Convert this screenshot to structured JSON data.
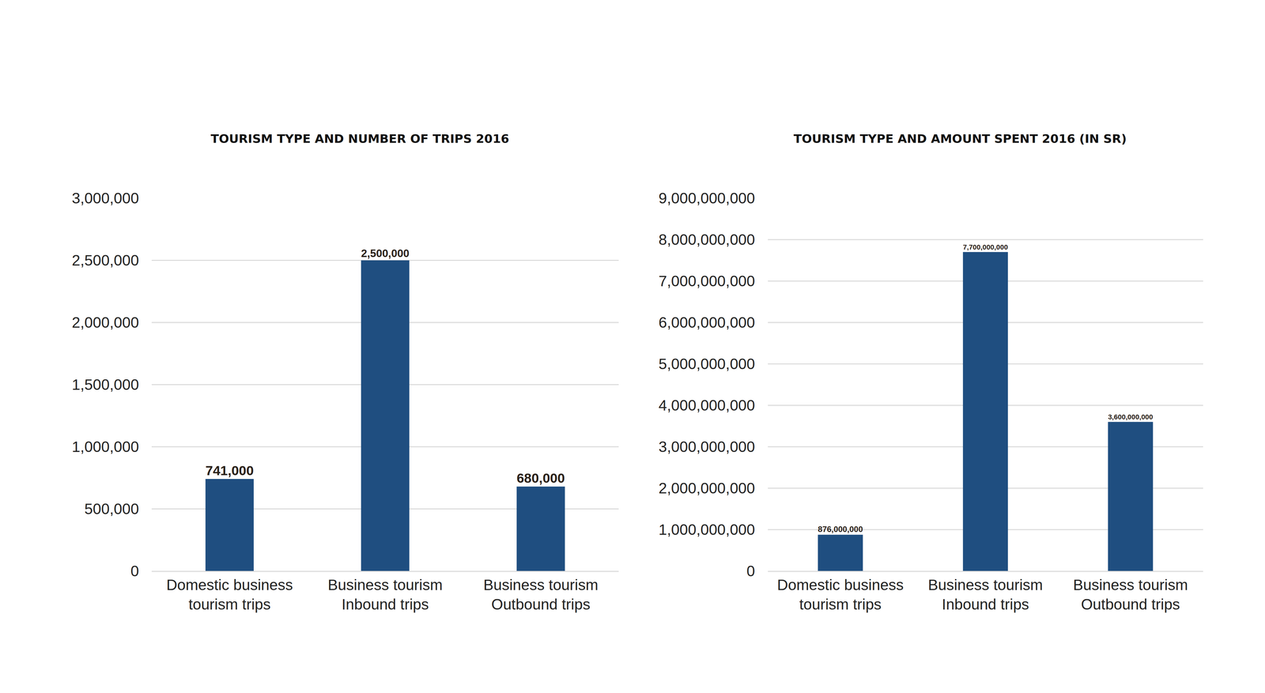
{
  "chart_data": [
    {
      "type": "bar",
      "title": "TOURISM TYPE AND NUMBER OF TRIPS 2016",
      "categories": [
        "Domestic business tourism trips",
        "Business tourism Inbound trips",
        "Business tourism Outbound trips"
      ],
      "values": [
        741000,
        2500000,
        680000
      ],
      "value_labels": [
        "741,000",
        "2,500,000",
        "680,000"
      ],
      "color": "#1f4e80",
      "ylim": [
        0,
        3000000
      ],
      "yticks": [
        0,
        {
          "value": 500000,
          "label": "500,000"
        },
        {
          "value": 1000000,
          "label": "1,000,000"
        },
        {
          "value": 1500000,
          "label": "1,500,000"
        },
        {
          "value": 2000000,
          "label": "2,000,000"
        },
        {
          "value": 2500000,
          "label": "2,500,000"
        },
        {
          "value": 3000000,
          "label": "3,000,000"
        }
      ],
      "grid": true,
      "data_labels": true
    },
    {
      "type": "bar",
      "title": "TOURISM TYPE AND AMOUNT SPENT 2016 (IN SR)",
      "categories": [
        "Domestic business tourism trips",
        "Business tourism Inbound trips",
        "Business tourism Outbound trips"
      ],
      "values": [
        876000000,
        7700000000,
        3600000000
      ],
      "value_labels": [
        "876,000,000",
        "7,700,000,000",
        "3,600,000,000"
      ],
      "color": "#1f4e80",
      "ylim": [
        0,
        9000000000
      ],
      "yticks": [
        0,
        {
          "value": 1000000000,
          "label": "1,000,000,000"
        },
        {
          "value": 2000000000,
          "label": "2,000,000,000"
        },
        {
          "value": 3000000000,
          "label": "3,000,000,000"
        },
        {
          "value": 4000000000,
          "label": "4,000,000,000"
        },
        {
          "value": 5000000000,
          "label": "5,000,000,000"
        },
        {
          "value": 6000000000,
          "label": "6,000,000,000"
        },
        {
          "value": 7000000000,
          "label": "7,000,000,000"
        },
        {
          "value": 8000000000,
          "label": "8,000,000,000"
        },
        {
          "value": 9000000000,
          "label": "9,000,000,000"
        }
      ],
      "grid": true,
      "data_labels": true
    }
  ]
}
